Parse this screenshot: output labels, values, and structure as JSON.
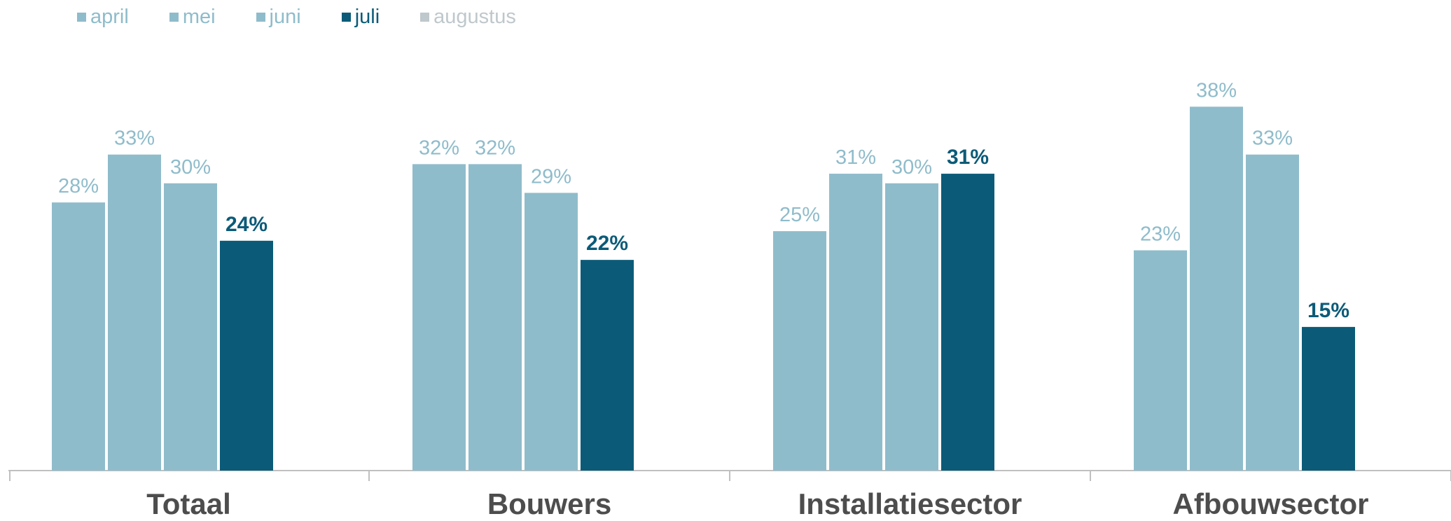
{
  "chart_data": {
    "type": "bar",
    "title": "",
    "xlabel": "",
    "ylabel": "",
    "ylim": [
      0,
      40
    ],
    "value_suffix": "%",
    "categories": [
      "Totaal",
      "Bouwers",
      "Installatiesector",
      "Afbouwsector"
    ],
    "series": [
      {
        "name": "april",
        "color": "#8fbccb",
        "values": [
          28,
          32,
          25,
          23
        ]
      },
      {
        "name": "mei",
        "color": "#8fbccb",
        "values": [
          33,
          32,
          31,
          38
        ]
      },
      {
        "name": "juni",
        "color": "#8fbccb",
        "values": [
          30,
          29,
          30,
          33
        ]
      },
      {
        "name": "juli",
        "color": "#0b5b78",
        "values": [
          24,
          22,
          31,
          15
        ]
      },
      {
        "name": "augustus",
        "color": "#bfc8cc",
        "values": [
          null,
          null,
          null,
          null
        ]
      }
    ],
    "legend_position": "top-left",
    "grid": false,
    "axis_color": "#c0c0c0",
    "category_label_color": "#4d4d4d"
  }
}
